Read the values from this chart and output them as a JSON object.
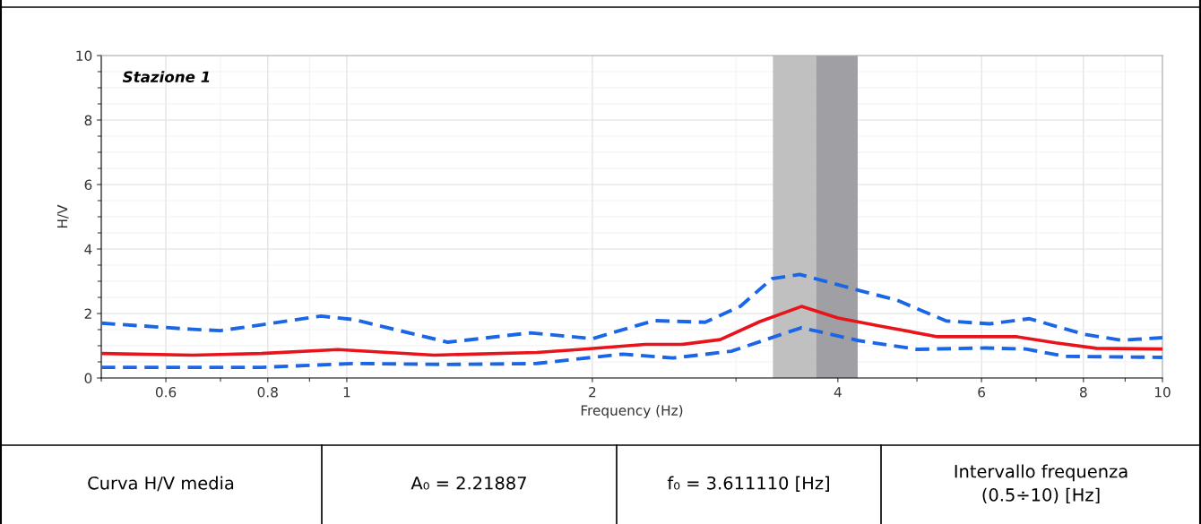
{
  "chart_data": {
    "type": "line",
    "xlabel": "Frequency (Hz)",
    "ylabel": "H/V",
    "log": "x",
    "xlim": [
      0.5,
      10
    ],
    "xticks": [
      0.6,
      0.8,
      1,
      2,
      4,
      6,
      8,
      10
    ],
    "ylim": [
      0,
      10
    ],
    "yticks": [
      0,
      2,
      4,
      6,
      8,
      10
    ],
    "grid": true,
    "series": [
      {
        "color": "#1a66e6",
        "line_style": "dashed",
        "x": [
          0.5,
          0.647,
          0.7,
          0.786,
          0.93,
          1.02,
          1.33,
          1.68,
          2.0,
          2.38,
          2.75,
          3.04,
          3.32,
          3.59,
          4.24,
          4.73,
          5.43,
          6.14,
          6.87,
          8.0,
          8.9,
          10
        ],
        "values": [
          1.7,
          1.51,
          1.47,
          1.65,
          1.92,
          1.81,
          1.11,
          1.4,
          1.22,
          1.78,
          1.73,
          2.23,
          3.08,
          3.21,
          2.72,
          2.41,
          1.77,
          1.68,
          1.84,
          1.36,
          1.17,
          1.25
        ]
      },
      {
        "color": "#e8141b",
        "line_style": "solid",
        "x": [
          0.5,
          0.647,
          0.786,
          0.975,
          1.28,
          1.71,
          1.94,
          2.32,
          2.57,
          2.87,
          3.21,
          3.61,
          4.0,
          4.49,
          5.3,
          6.63,
          7.4,
          8.3,
          10
        ],
        "values": [
          0.76,
          0.71,
          0.76,
          0.88,
          0.71,
          0.79,
          0.89,
          1.04,
          1.04,
          1.19,
          1.75,
          2.22,
          1.86,
          1.62,
          1.28,
          1.28,
          1.09,
          0.92,
          0.9
        ]
      },
      {
        "color": "#1a66e6",
        "line_style": "dashed",
        "x": [
          0.5,
          0.786,
          1.02,
          1.33,
          1.71,
          2.0,
          2.18,
          2.51,
          2.96,
          3.61,
          4.24,
          5.0,
          6.06,
          6.8,
          7.6,
          10
        ],
        "values": [
          0.33,
          0.33,
          0.45,
          0.42,
          0.45,
          0.64,
          0.74,
          0.62,
          0.83,
          1.56,
          1.16,
          0.89,
          0.93,
          0.9,
          0.67,
          0.64
        ]
      }
    ],
    "bands": [
      {
        "axis": "x",
        "from": 3.33,
        "to": 3.76,
        "color": "#c0c0c0"
      },
      {
        "axis": "x",
        "from": 3.76,
        "to": 4.23,
        "color": "#a0a0a4"
      }
    ],
    "annotations": [
      "Stazione 1",
      "Curva H/V media",
      "A₀ = 2.21887",
      "f₀ = 3.611110 [Hz]",
      "Intervallo frequenza\n(0.5÷10) [Hz]"
    ]
  }
}
